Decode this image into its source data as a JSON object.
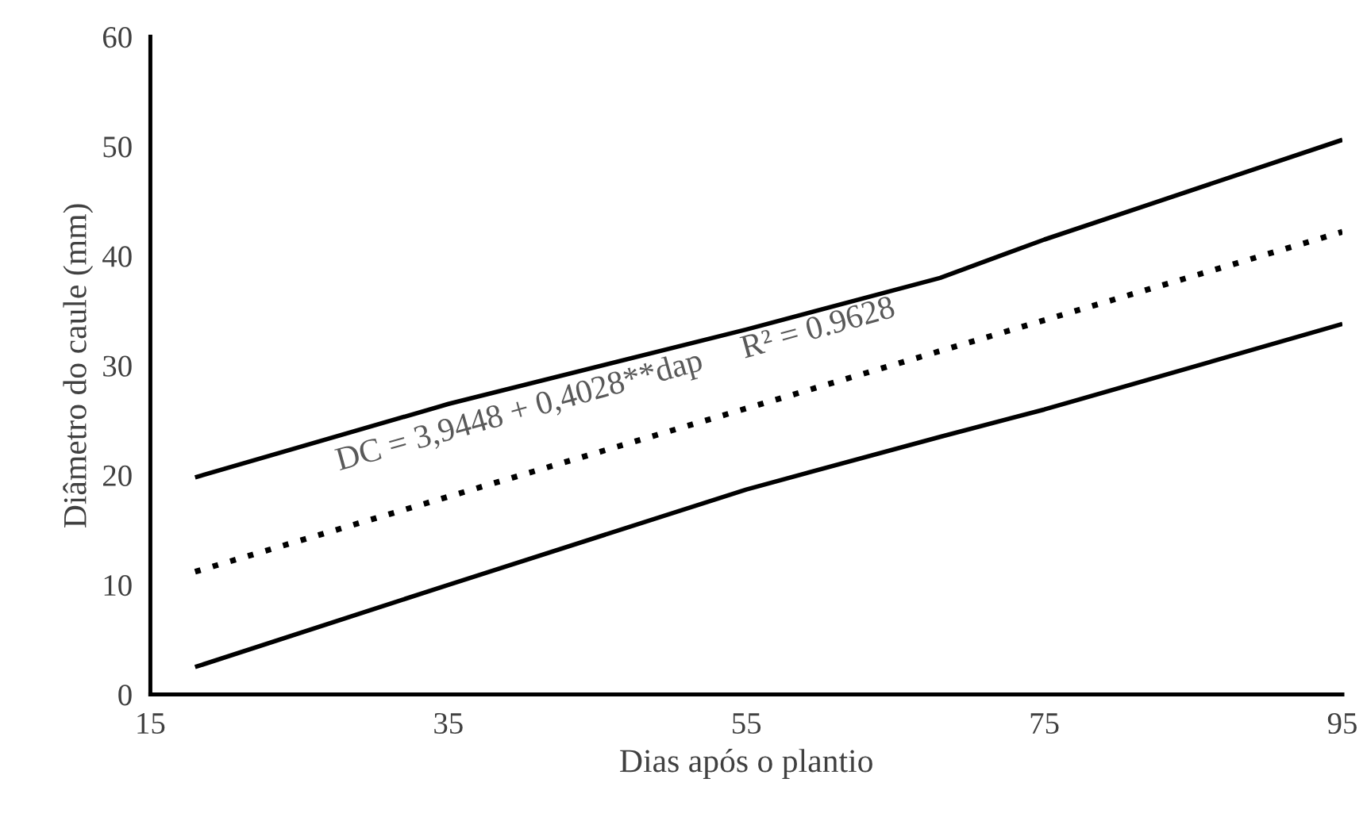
{
  "chart_data": {
    "type": "line",
    "xlabel": "Dias após o plantio",
    "ylabel": "Diâmetro do caule (mm)",
    "xlim": [
      15,
      95
    ],
    "xticks": [
      15,
      35,
      55,
      75,
      95
    ],
    "ylim": [
      0,
      60
    ],
    "yticks": [
      0,
      10,
      20,
      30,
      40,
      50,
      60
    ],
    "grid": false,
    "legend": false,
    "marker": "none",
    "series": [
      {
        "color": "#000000",
        "line_style": "solid",
        "x": [
          18,
          35,
          55,
          68,
          75,
          95
        ],
        "values": [
          19.8,
          26.5,
          33.3,
          38,
          41.5,
          50.6
        ]
      },
      {
        "color": "#000000",
        "line_style": "dotted",
        "x": [
          18,
          95
        ],
        "values": [
          11.2,
          42.2
        ]
      },
      {
        "color": "#000000",
        "line_style": "solid",
        "x": [
          18,
          35,
          55,
          68,
          75,
          95
        ],
        "values": [
          2.5,
          10,
          18.7,
          23.5,
          26,
          33.8
        ]
      }
    ],
    "annotations": [
      "DC = 3,9448 + 0,4028**dap     R² = 0.9628"
    ]
  }
}
